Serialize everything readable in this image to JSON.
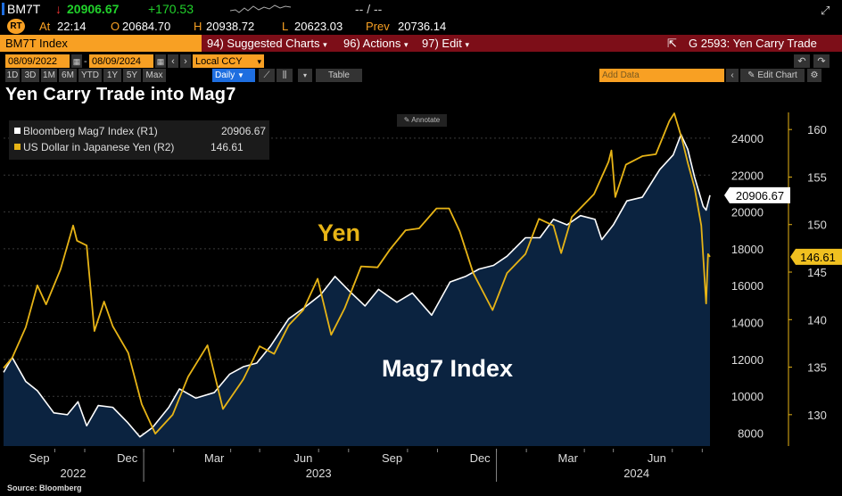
{
  "quote": {
    "ticker": "BM7T",
    "last": "20906.67",
    "change": "+170.53",
    "bid_ask": "-- / --",
    "at_label": "At",
    "time": "22:14",
    "open": "20684.70",
    "high_label": "H",
    "high": "20938.72",
    "low_label": "L",
    "low": "20623.03",
    "prev_label": "Prev",
    "prev": "20736.14",
    "colors": {
      "up": "#21d12b",
      "accent": "#f8a023",
      "menu": "#7d0e18"
    }
  },
  "menu": {
    "security": "BM7T Index",
    "suggested": "94) Suggested Charts",
    "actions": "96) Actions",
    "edit": "97) Edit",
    "chart_name": "G 2593: Yen Carry Trade"
  },
  "controls": {
    "start_date": "08/09/2022",
    "end_date": "08/09/2024",
    "currency": "Local CCY",
    "periods": [
      "1D",
      "3D",
      "1M",
      "6M",
      "YTD",
      "1Y",
      "5Y",
      "Max"
    ],
    "frequency": "Daily",
    "table_label": "Table",
    "add_data": "Add Data",
    "edit_chart": "Edit Chart"
  },
  "chart_title": "Yen Carry Trade into Mag7",
  "annotate_label": "Annotate",
  "source": "Source: Bloomberg",
  "chart_data": {
    "type": "line",
    "title": "Yen Carry Trade into Mag7",
    "x_range": [
      "2022-08-09",
      "2024-08-09"
    ],
    "x_ticks": [
      "Sep",
      "Dec",
      "Mar",
      "Jun",
      "Sep",
      "Dec",
      "Mar",
      "Jun"
    ],
    "x_years": [
      "2022",
      "2023",
      "2024"
    ],
    "left_axis": {
      "ticks": [
        "8000",
        "10000",
        "12000",
        "14000",
        "16000",
        "18000",
        "20000",
        "22000",
        "24000"
      ],
      "range": [
        7300,
        25400
      ]
    },
    "right_axis": {
      "ticks": [
        "130",
        "135",
        "140",
        "145",
        "150",
        "155",
        "160"
      ],
      "range": [
        126.7,
        161.8
      ]
    },
    "annotations": [
      {
        "text": "Yen",
        "color": "#e7b416"
      },
      {
        "text": "Mag7 Index",
        "color": "#ffffff"
      }
    ],
    "series": [
      {
        "name": "Bloomberg Mag7 Index (R1)",
        "legend_value": "20906.67",
        "last_label": "20906.67",
        "axis": "left",
        "color": "#ffffff",
        "fill": "#0b2340",
        "points": [
          [
            "2022-08-09",
            11300
          ],
          [
            "2022-08-18",
            12100
          ],
          [
            "2022-09-01",
            10800
          ],
          [
            "2022-09-13",
            10300
          ],
          [
            "2022-09-30",
            9100
          ],
          [
            "2022-10-14",
            9000
          ],
          [
            "2022-10-25",
            9700
          ],
          [
            "2022-11-03",
            8400
          ],
          [
            "2022-11-15",
            9500
          ],
          [
            "2022-11-30",
            9400
          ],
          [
            "2022-12-15",
            8600
          ],
          [
            "2022-12-28",
            7800
          ],
          [
            "2023-01-10",
            8300
          ],
          [
            "2023-01-27",
            9400
          ],
          [
            "2023-02-07",
            10400
          ],
          [
            "2023-02-24",
            9900
          ],
          [
            "2023-03-15",
            10200
          ],
          [
            "2023-03-31",
            11200
          ],
          [
            "2023-04-14",
            11600
          ],
          [
            "2023-04-28",
            11800
          ],
          [
            "2023-05-12",
            12700
          ],
          [
            "2023-05-31",
            14200
          ],
          [
            "2023-06-16",
            14800
          ],
          [
            "2023-07-03",
            15500
          ],
          [
            "2023-07-18",
            16500
          ],
          [
            "2023-08-02",
            15700
          ],
          [
            "2023-08-18",
            14900
          ],
          [
            "2023-09-01",
            15800
          ],
          [
            "2023-09-20",
            15100
          ],
          [
            "2023-10-06",
            15600
          ],
          [
            "2023-10-26",
            14400
          ],
          [
            "2023-11-14",
            16200
          ],
          [
            "2023-11-30",
            16500
          ],
          [
            "2023-12-14",
            16900
          ],
          [
            "2023-12-29",
            17100
          ],
          [
            "2024-01-12",
            17600
          ],
          [
            "2024-01-31",
            18600
          ],
          [
            "2024-02-15",
            18600
          ],
          [
            "2024-02-29",
            19600
          ],
          [
            "2024-03-14",
            19300
          ],
          [
            "2024-03-28",
            19800
          ],
          [
            "2024-04-12",
            19600
          ],
          [
            "2024-04-19",
            18500
          ],
          [
            "2024-05-01",
            19300
          ],
          [
            "2024-05-15",
            20600
          ],
          [
            "2024-05-31",
            20800
          ],
          [
            "2024-06-18",
            22300
          ],
          [
            "2024-07-02",
            23100
          ],
          [
            "2024-07-10",
            24200
          ],
          [
            "2024-07-17",
            23400
          ],
          [
            "2024-07-24",
            21900
          ],
          [
            "2024-08-02",
            20300
          ],
          [
            "2024-08-05",
            20100
          ],
          [
            "2024-08-09",
            20906.67
          ]
        ]
      },
      {
        "name": "US Dollar in Japanese Yen (R2)",
        "legend_value": "146.61",
        "last_label": "146.61",
        "axis": "right",
        "color": "#e7b416",
        "points": [
          [
            "2022-08-09",
            134.9
          ],
          [
            "2022-08-18",
            136.0
          ],
          [
            "2022-09-01",
            139.2
          ],
          [
            "2022-09-13",
            143.6
          ],
          [
            "2022-09-22",
            141.6
          ],
          [
            "2022-10-07",
            145.3
          ],
          [
            "2022-10-20",
            149.9
          ],
          [
            "2022-10-24",
            148.3
          ],
          [
            "2022-11-03",
            147.8
          ],
          [
            "2022-11-11",
            138.8
          ],
          [
            "2022-11-21",
            141.9
          ],
          [
            "2022-11-30",
            139.3
          ],
          [
            "2022-12-16",
            136.5
          ],
          [
            "2022-12-30",
            131.1
          ],
          [
            "2023-01-13",
            128.0
          ],
          [
            "2023-01-31",
            130.0
          ],
          [
            "2023-02-16",
            134.0
          ],
          [
            "2023-03-08",
            137.3
          ],
          [
            "2023-03-24",
            130.6
          ],
          [
            "2023-04-14",
            133.7
          ],
          [
            "2023-05-01",
            137.2
          ],
          [
            "2023-05-16",
            136.4
          ],
          [
            "2023-05-31",
            139.4
          ],
          [
            "2023-06-15",
            141.0
          ],
          [
            "2023-06-30",
            144.3
          ],
          [
            "2023-07-14",
            138.4
          ],
          [
            "2023-07-28",
            141.2
          ],
          [
            "2023-08-14",
            145.6
          ],
          [
            "2023-08-31",
            145.5
          ],
          [
            "2023-09-13",
            147.4
          ],
          [
            "2023-09-29",
            149.4
          ],
          [
            "2023-10-13",
            149.6
          ],
          [
            "2023-10-31",
            151.7
          ],
          [
            "2023-11-13",
            151.7
          ],
          [
            "2023-11-24",
            149.3
          ],
          [
            "2023-12-08",
            144.9
          ],
          [
            "2023-12-28",
            141.0
          ],
          [
            "2024-01-12",
            144.9
          ],
          [
            "2024-01-31",
            146.9
          ],
          [
            "2024-02-14",
            150.6
          ],
          [
            "2024-02-29",
            149.9
          ],
          [
            "2024-03-08",
            147.0
          ],
          [
            "2024-03-19",
            150.8
          ],
          [
            "2024-04-11",
            153.2
          ],
          [
            "2024-04-26",
            156.6
          ],
          [
            "2024-04-29",
            157.8
          ],
          [
            "2024-05-03",
            152.9
          ],
          [
            "2024-05-14",
            156.3
          ],
          [
            "2024-05-31",
            157.2
          ],
          [
            "2024-06-14",
            157.4
          ],
          [
            "2024-06-28",
            160.9
          ],
          [
            "2024-07-03",
            161.7
          ],
          [
            "2024-07-11",
            159.0
          ],
          [
            "2024-07-17",
            156.5
          ],
          [
            "2024-07-24",
            153.9
          ],
          [
            "2024-07-31",
            149.9
          ],
          [
            "2024-08-05",
            141.7
          ],
          [
            "2024-08-07",
            146.9
          ],
          [
            "2024-08-09",
            146.61
          ]
        ]
      }
    ]
  }
}
